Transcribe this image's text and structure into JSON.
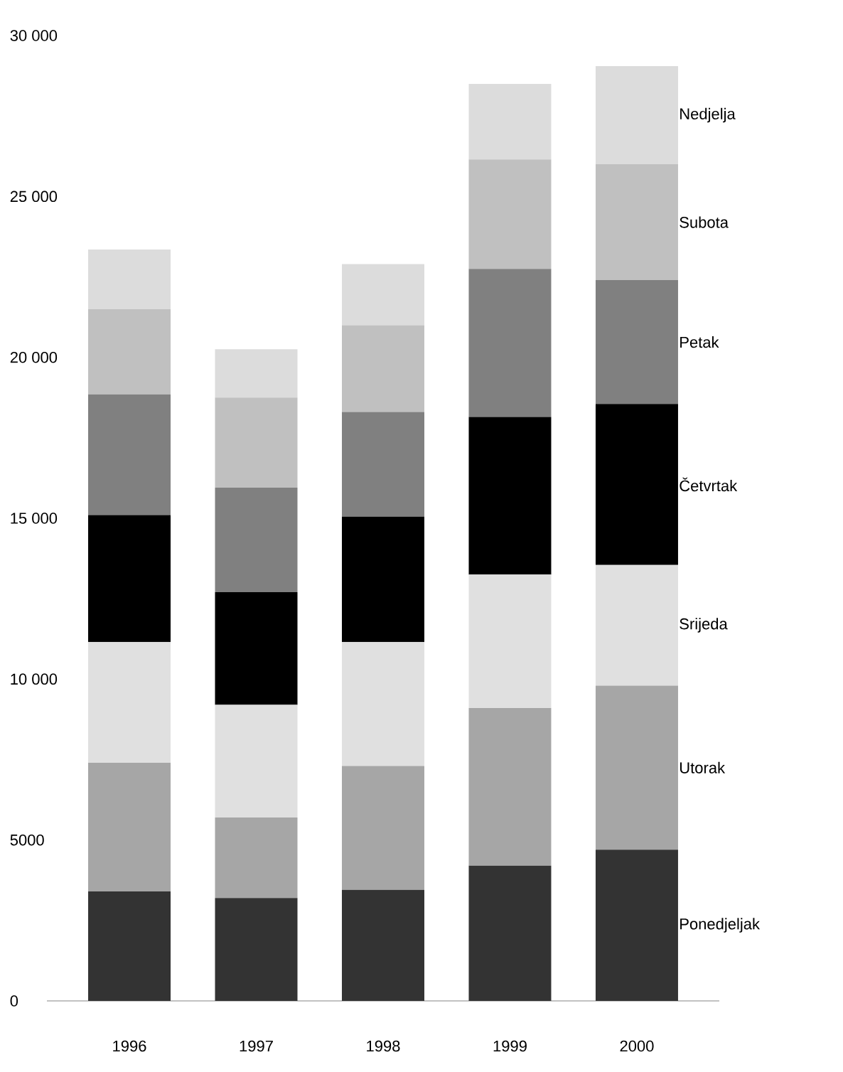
{
  "chart_data": {
    "type": "bar",
    "stacked": true,
    "categories": [
      "1996",
      "1997",
      "1998",
      "1999",
      "2000"
    ],
    "ylim": [
      0,
      30000
    ],
    "yticks": [
      0,
      5000,
      {
        "value": 10000,
        "label": "10 000"
      },
      {
        "value": 15000,
        "label": "15 000"
      },
      {
        "value": 20000,
        "label": "20 000"
      },
      {
        "value": 25000,
        "label": "25 000"
      },
      {
        "value": 30000,
        "label": "30 000"
      }
    ],
    "grid": false,
    "series": [
      {
        "name": "Ponedjeljak",
        "color": "#333333",
        "values": [
          3400,
          3200,
          3450,
          4200,
          4700
        ]
      },
      {
        "name": "Utorak",
        "color": "#a6a6a6",
        "values": [
          4000,
          2500,
          3850,
          4900,
          5100
        ]
      },
      {
        "name": "Srijeda",
        "color": "#e0e0e0",
        "values": [
          3750,
          3500,
          3850,
          4150,
          3750
        ]
      },
      {
        "name": "Četvrtak",
        "color": "#000000",
        "values": [
          3950,
          3500,
          3900,
          4900,
          5000
        ]
      },
      {
        "name": "Petak",
        "color": "#808080",
        "values": [
          3750,
          3250,
          3250,
          4600,
          3850
        ]
      },
      {
        "name": "Subota",
        "color": "#c0c0c0",
        "values": [
          2650,
          2800,
          2700,
          3400,
          3600
        ]
      },
      {
        "name": "Nedjelja",
        "color": "#dcdcdc",
        "values": [
          1850,
          1500,
          1900,
          2350,
          3050
        ]
      }
    ]
  }
}
